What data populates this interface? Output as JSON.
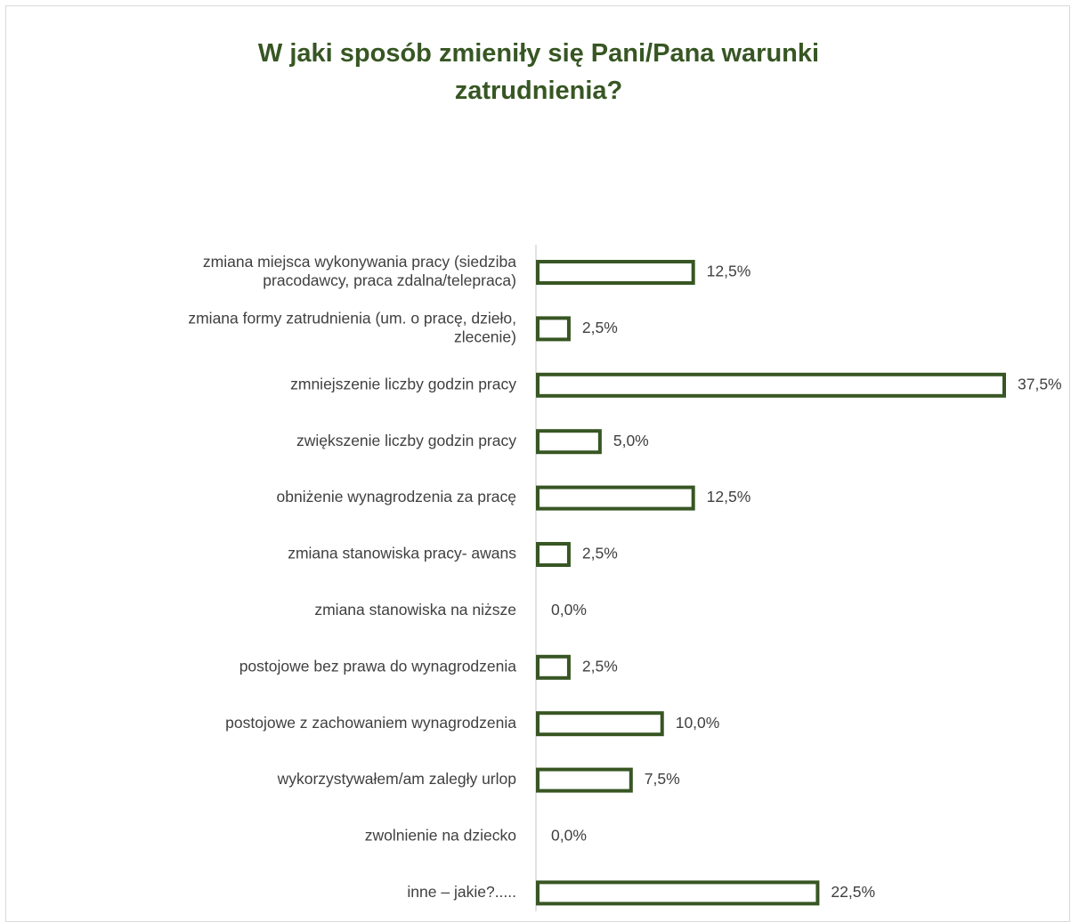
{
  "chart_data": {
    "type": "bar",
    "orientation": "horizontal",
    "title": "W jaki sposób zmieniły się Pani/Pana warunki\nzatrudnienia?",
    "categories": [
      [
        "zmiana miejsca wykonywania pracy (siedziba",
        "pracodawcy, praca zdalna/telepraca)"
      ],
      [
        "zmiana formy zatrudnienia (um. o pracę, dzieło,",
        "zlecenie)"
      ],
      [
        "zmniejszenie liczby godzin pracy"
      ],
      [
        "zwiększenie liczby godzin pracy"
      ],
      [
        "obniżenie wynagrodzenia za pracę"
      ],
      [
        "zmiana stanowiska pracy- awans"
      ],
      [
        "zmiana stanowiska na niższe"
      ],
      [
        "postojowe bez prawa do wynagrodzenia"
      ],
      [
        "postojowe z zachowaniem wynagrodzenia"
      ],
      [
        "wykorzystywałem/am zaległy urlop"
      ],
      [
        "zwolnienie na dziecko"
      ],
      [
        "inne – jakie?....."
      ]
    ],
    "values": [
      12.5,
      2.5,
      37.5,
      5.0,
      12.5,
      2.5,
      0.0,
      2.5,
      10.0,
      7.5,
      0.0,
      22.5
    ],
    "data_labels": [
      "12,5%",
      "2,5%",
      "37,5%",
      "5,0%",
      "12,5%",
      "2,5%",
      "0,0%",
      "2,5%",
      "10,0%",
      "7,5%",
      "0,0%",
      "22,5%"
    ],
    "xlim": [
      0,
      37.5
    ],
    "grid": false,
    "legend": "none",
    "bar_style": "outline",
    "bar_edge_color": "#375623",
    "bar_fill_color": "#ffffff",
    "title_color": "#375623",
    "label_color": "#404040"
  }
}
